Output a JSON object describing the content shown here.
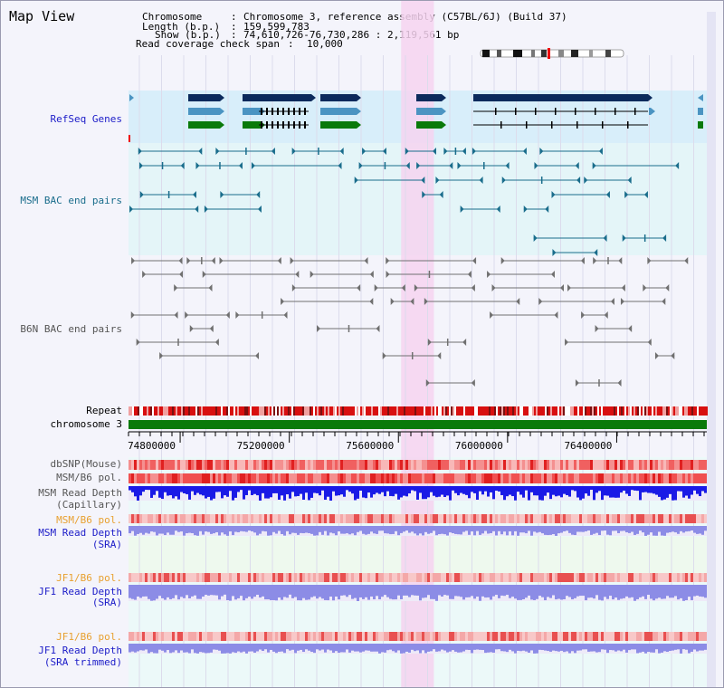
{
  "title": "Map View",
  "info": {
    "chromosome_key": "Chromosome",
    "chromosome_val": "Chromosome 3, reference assembly (C57BL/6J) (Build 37)",
    "length_key": "Length (b.p.)",
    "length_val": "159,599,783",
    "show_key": "Show (b.p.)",
    "show_val": "74,610,726-76,730,286 : 2,119,561 bp",
    "coverage_key": "Read coverage check span",
    "coverage_val": "10,000"
  },
  "tracks": {
    "refseq": "RefSeq Genes",
    "msm_bac": "MSM BAC end pairs",
    "b6n_bac": "B6N BAC end pairs",
    "repeat": "Repeat",
    "chromosome": "chromosome 3",
    "dbsnp": "dbSNP(Mouse)",
    "msm_b6_pol": "MSM/B6 pol.",
    "msm_depth_cap_1": "MSM Read Depth",
    "msm_depth_cap_2": "(Capillary)",
    "msm_b6_pol_2": "MSM/B6 pol.",
    "msm_depth_sra_1": "MSM Read Depth",
    "msm_depth_sra_2": "(SRA)",
    "jf1_b6_pol": "JF1/B6 pol.",
    "jf1_depth_sra_1": "JF1 Read Depth",
    "jf1_depth_sra_2": "(SRA)",
    "jf1_b6_pol_2": "JF1/B6 pol.",
    "jf1_depth_trim_1": "JF1 Read Depth",
    "jf1_depth_trim_2": "(SRA trimmed)"
  },
  "axis": {
    "ticks": [
      {
        "value": 74800000,
        "label": "74800000"
      },
      {
        "value": 75200000,
        "label": "75200000"
      },
      {
        "value": 75600000,
        "label": "75600000"
      },
      {
        "value": 76000000,
        "label": "76000000"
      },
      {
        "value": 76400000,
        "label": "76400000"
      }
    ],
    "range": [
      74610726,
      76730286
    ],
    "highlight": [
      75610000,
      75730000
    ]
  },
  "colors": {
    "refseq_bg": "#d8eefa",
    "msm_bg": "#e4f5f8",
    "b6n_bg": "#f4f4fb",
    "highlight": "#f6d4f0",
    "gene_dark": "#0c2a5c",
    "gene_mid": "#4b94c2",
    "gene_green": "#0a7a0a",
    "msm_bac": "#1a6d8c",
    "b6n_bac": "#707070",
    "chrom": "#0a7a0a",
    "depth_blue": "#1a1ae6",
    "depth_sra": "#8c8ce6"
  }
}
